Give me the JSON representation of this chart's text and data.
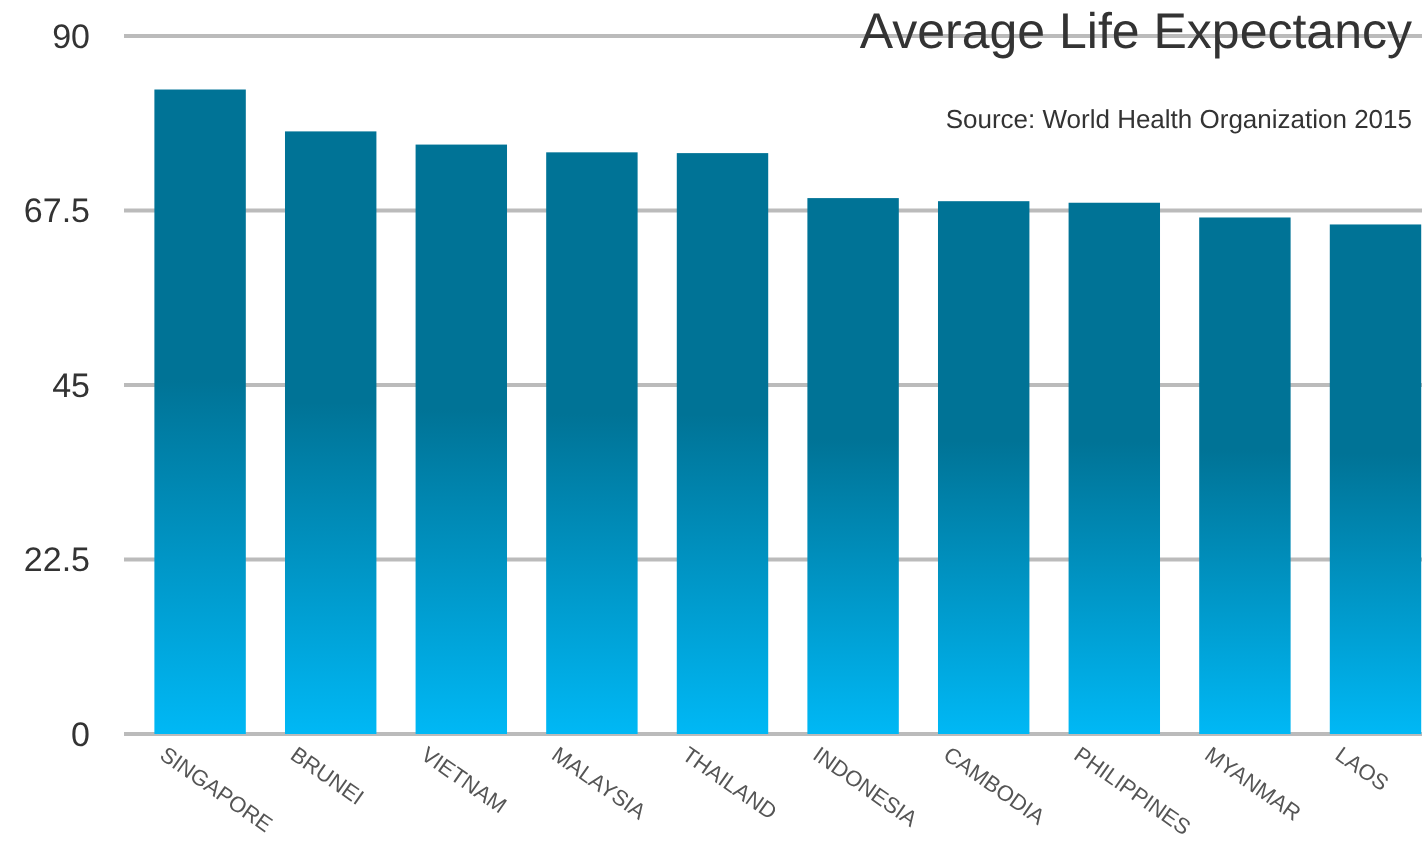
{
  "chart_data": {
    "type": "bar",
    "title": "Average Life Expectancy",
    "annotations": [
      "Source: World Health Organization 2015"
    ],
    "categories": [
      "SINGAPORE",
      "BRUNEI",
      "VIETNAM",
      "MALAYSIA",
      "THAILAND",
      "INDONESIA",
      "CAMBODIA",
      "PHILIPPINES",
      "MYANMAR",
      "LAOS"
    ],
    "values": [
      83.1,
      77.7,
      76.0,
      75.0,
      74.9,
      69.1,
      68.7,
      68.5,
      66.6,
      65.7
    ],
    "color": "#007396",
    "ylim": [
      0,
      90
    ],
    "yticks": [
      0,
      22.5,
      45,
      67.5,
      90
    ],
    "grid": "y"
  }
}
